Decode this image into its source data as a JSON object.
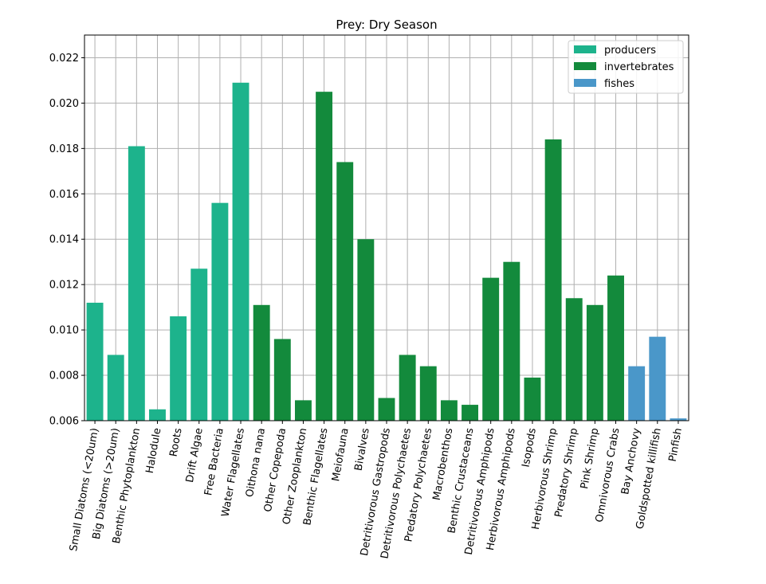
{
  "chart_data": {
    "type": "bar",
    "title": "Prey: Dry Season",
    "xlabel": "",
    "ylabel": "",
    "ylim": [
      0.006,
      0.023
    ],
    "yticks": [
      0.006,
      0.008,
      0.01,
      0.012,
      0.014,
      0.016,
      0.018,
      0.02,
      0.022
    ],
    "ytick_labels": [
      "0.006",
      "0.008",
      "0.010",
      "0.012",
      "0.014",
      "0.016",
      "0.018",
      "0.020",
      "0.022"
    ],
    "grid": true,
    "legend_position": "top-right",
    "legend": [
      {
        "label": "producers",
        "color": "#1db38c"
      },
      {
        "label": "invertebrates",
        "color": "#138a3c"
      },
      {
        "label": "fishes",
        "color": "#4a97c9"
      }
    ],
    "categories": [
      "Small Diatoms (<20um)",
      "Big Diatoms (>20um)",
      "Benthic Phytoplankton",
      "Halodule",
      "Roots",
      "Drift Algae",
      "Free Bacteria",
      "Water Flagellates",
      "Oithona nana",
      "Other Copepoda",
      "Other Zooplankton",
      "Benthic Flagellates",
      "Meiofauna",
      "Bivalves",
      "Detritivorous Gastropods",
      "Detritivorous Polychaetes",
      "Predatory Polychaetes",
      "Macrobenthos",
      "Benthic Crustaceans",
      "Detritivorous Amphipods",
      "Herbivorous Amphipods",
      "Isopods",
      "Herbivorous Shrimp",
      "Predatory Shrimp",
      "Pink Shrimp",
      "Omnivorous Crabs",
      "Bay Anchovy",
      "Goldspotted killifish",
      "Pinfish"
    ],
    "values": [
      0.0112,
      0.0089,
      0.0181,
      0.0065,
      0.0106,
      0.0127,
      0.0156,
      0.0209,
      0.0111,
      0.0096,
      0.0069,
      0.0205,
      0.0174,
      0.014,
      0.007,
      0.0089,
      0.0084,
      0.0069,
      0.0067,
      0.0123,
      0.013,
      0.0079,
      0.0184,
      0.0114,
      0.0111,
      0.0124,
      0.0084,
      0.0097,
      0.0061
    ],
    "groups": [
      "producers",
      "producers",
      "producers",
      "producers",
      "producers",
      "producers",
      "producers",
      "producers",
      "invertebrates",
      "invertebrates",
      "invertebrates",
      "invertebrates",
      "invertebrates",
      "invertebrates",
      "invertebrates",
      "invertebrates",
      "invertebrates",
      "invertebrates",
      "invertebrates",
      "invertebrates",
      "invertebrates",
      "invertebrates",
      "invertebrates",
      "invertebrates",
      "invertebrates",
      "invertebrates",
      "fishes",
      "fishes",
      "fishes"
    ]
  }
}
